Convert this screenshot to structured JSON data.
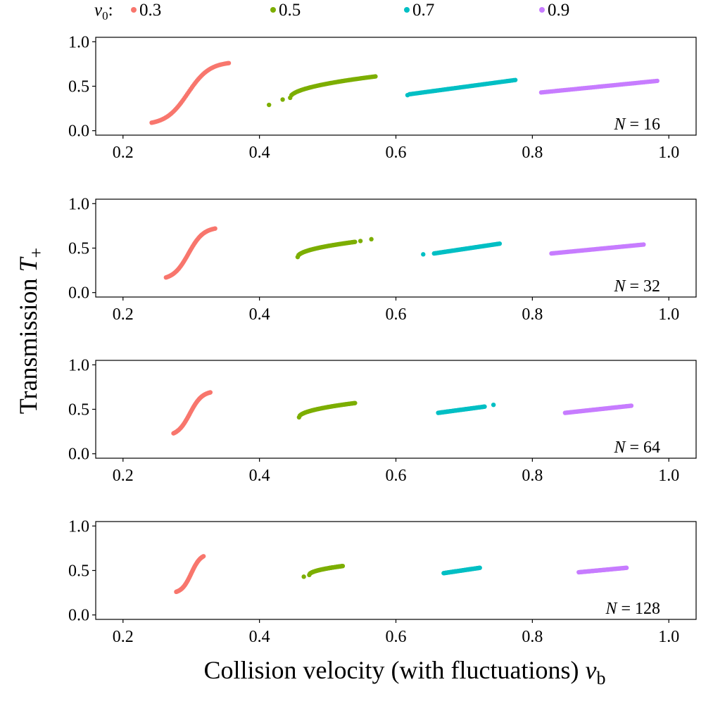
{
  "chart_data": {
    "type": "scatter",
    "xlabel": "Collision velocity (with fluctuations) v_b",
    "xlabel_main": "Collision velocity (with fluctuations) ",
    "xlabel_var": "v",
    "xlabel_sub": "b",
    "ylabel": "Transmission T_+",
    "ylabel_main": "Transmission ",
    "ylabel_var": "T",
    "ylabel_sub": "+",
    "legend": {
      "title": "v0:",
      "title_var": "v",
      "title_sub": "0",
      "title_suffix": ":",
      "position": "top",
      "entries": [
        {
          "label": "0.3",
          "color": "#F8766D"
        },
        {
          "label": "0.5",
          "color": "#7CAE00"
        },
        {
          "label": "0.7",
          "color": "#00BFC4"
        },
        {
          "label": "0.9",
          "color": "#C77CFF"
        }
      ]
    },
    "xlim": [
      0.16,
      1.04
    ],
    "ylim": [
      -0.05,
      1.05
    ],
    "xticks": [
      "0.2",
      "0.4",
      "0.6",
      "0.8",
      "1.0"
    ],
    "yticks": [
      "0.0",
      "0.5",
      "1.0"
    ],
    "grid": false,
    "panels": [
      {
        "label": "N = 16",
        "label_var": "N",
        "label_rest": " = 16",
        "series": [
          {
            "name": "0.3",
            "shape": "sigmoid",
            "x_range": [
              0.242,
              0.355
            ],
            "y_range": [
              0.09,
              0.76
            ],
            "center": 0.295,
            "scale": 0.016,
            "outliers": []
          },
          {
            "name": "0.5",
            "shape": "sqrt",
            "x_range": [
              0.445,
              0.57
            ],
            "y_range": [
              0.37,
              0.61
            ],
            "outliers": [
              [
                0.414,
                0.29
              ],
              [
                0.434,
                0.35
              ]
            ]
          },
          {
            "name": "0.7",
            "shape": "linear",
            "x_range": [
              0.62,
              0.775
            ],
            "y_range": [
              0.41,
              0.57
            ],
            "outliers": [
              [
                0.617,
                0.4
              ]
            ]
          },
          {
            "name": "0.9",
            "shape": "linear",
            "x_range": [
              0.813,
              0.983
            ],
            "y_range": [
              0.43,
              0.56
            ],
            "outliers": []
          }
        ]
      },
      {
        "label": "N = 32",
        "label_var": "N",
        "label_rest": " = 32",
        "series": [
          {
            "name": "0.3",
            "shape": "sigmoid",
            "x_range": [
              0.263,
              0.335
            ],
            "y_range": [
              0.17,
              0.72
            ],
            "center": 0.296,
            "scale": 0.011,
            "outliers": []
          },
          {
            "name": "0.5",
            "shape": "sqrt",
            "x_range": [
              0.456,
              0.54
            ],
            "y_range": [
              0.4,
              0.57
            ],
            "outliers": [
              [
                0.548,
                0.58
              ],
              [
                0.564,
                0.6
              ]
            ]
          },
          {
            "name": "0.7",
            "shape": "linear",
            "x_range": [
              0.656,
              0.752
            ],
            "y_range": [
              0.44,
              0.55
            ],
            "outliers": [
              [
                0.64,
                0.43
              ]
            ]
          },
          {
            "name": "0.9",
            "shape": "linear",
            "x_range": [
              0.828,
              0.963
            ],
            "y_range": [
              0.44,
              0.54
            ],
            "outliers": []
          }
        ]
      },
      {
        "label": "N = 64",
        "label_var": "N",
        "label_rest": " = 64",
        "series": [
          {
            "name": "0.3",
            "shape": "sigmoid",
            "x_range": [
              0.274,
              0.328
            ],
            "y_range": [
              0.23,
              0.69
            ],
            "center": 0.298,
            "scale": 0.009,
            "outliers": []
          },
          {
            "name": "0.5",
            "shape": "sqrt",
            "x_range": [
              0.458,
              0.54
            ],
            "y_range": [
              0.41,
              0.57
            ],
            "outliers": []
          },
          {
            "name": "0.7",
            "shape": "linear",
            "x_range": [
              0.662,
              0.73
            ],
            "y_range": [
              0.46,
              0.53
            ],
            "outliers": [
              [
                0.743,
                0.55
              ]
            ]
          },
          {
            "name": "0.9",
            "shape": "linear",
            "x_range": [
              0.848,
              0.945
            ],
            "y_range": [
              0.46,
              0.54
            ],
            "outliers": []
          }
        ]
      },
      {
        "label": "N = 128",
        "label_var": "N",
        "label_rest": " = 128",
        "series": [
          {
            "name": "0.3",
            "shape": "sigmoid",
            "x_range": [
              0.278,
              0.318
            ],
            "y_range": [
              0.26,
              0.66
            ],
            "center": 0.3,
            "scale": 0.007,
            "outliers": []
          },
          {
            "name": "0.5",
            "shape": "sqrt",
            "x_range": [
              0.473,
              0.522
            ],
            "y_range": [
              0.45,
              0.55
            ],
            "outliers": [
              [
                0.465,
                0.43
              ]
            ]
          },
          {
            "name": "0.7",
            "shape": "linear",
            "x_range": [
              0.67,
              0.723
            ],
            "y_range": [
              0.47,
              0.53
            ],
            "outliers": []
          },
          {
            "name": "0.9",
            "shape": "linear",
            "x_range": [
              0.868,
              0.938
            ],
            "y_range": [
              0.48,
              0.53
            ],
            "outliers": []
          }
        ]
      }
    ]
  }
}
